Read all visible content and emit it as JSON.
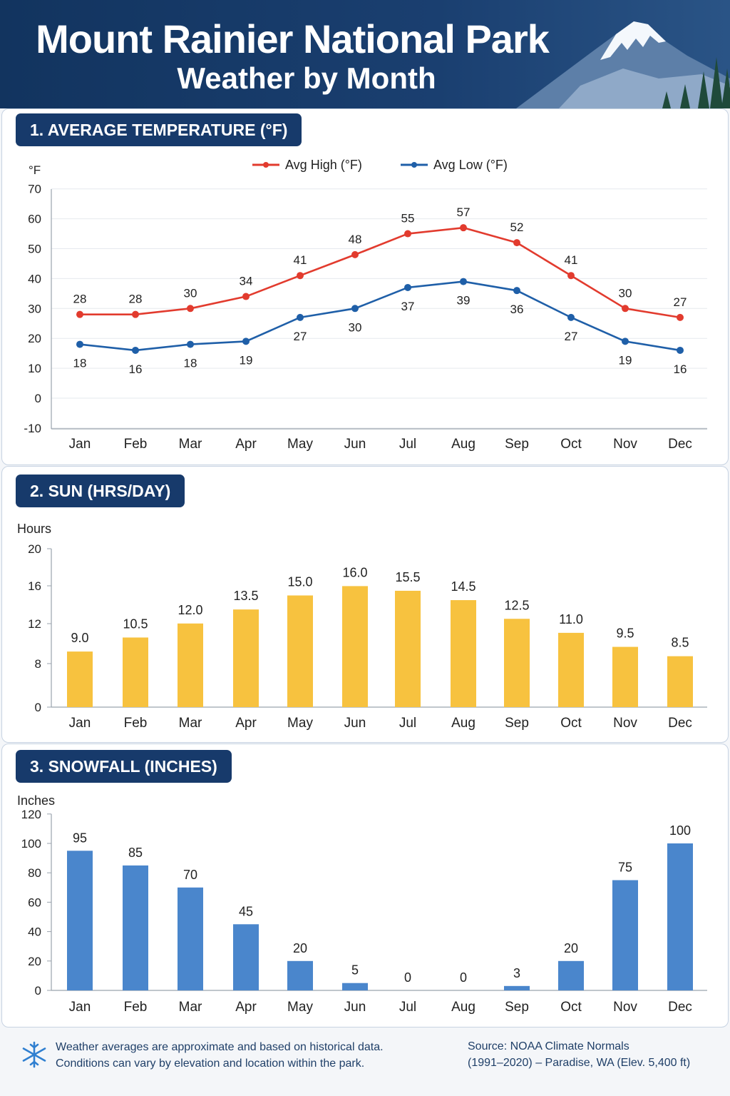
{
  "header": {
    "title": "Mount Rainier National Park",
    "subtitle": "Weather by Month"
  },
  "sections": {
    "temperature": {
      "tag": "1. AVERAGE TEMPERATURE (°F)"
    },
    "sun": {
      "tag": "2. SUN (HRS/DAY)"
    },
    "snow": {
      "tag": "3. SNOWFALL (INCHES)"
    }
  },
  "footer": {
    "note_line1": "Weather averages are approximate and based on historical data.",
    "note_line2": "Conditions can vary by elevation and location within the park.",
    "source_line1": "Source: NOAA Climate Normals",
    "source_line2": "(1991–2020) – Paradise, WA (Elev. 5,400 ft)"
  },
  "chart_data": [
    {
      "type": "line",
      "categories": [
        "Jan",
        "Feb",
        "Mar",
        "Apr",
        "May",
        "Jun",
        "Jul",
        "Aug",
        "Sep",
        "Oct",
        "Nov",
        "Dec"
      ],
      "ylabel": "°F",
      "ylim": [
        -10,
        70
      ],
      "yticks": [
        70,
        60,
        50,
        40,
        30,
        20,
        10,
        0,
        -10
      ],
      "grid": true,
      "legend": "top-center",
      "series": [
        {
          "name": "Avg High (°F)",
          "color": "#e23b2e",
          "values": [
            28,
            28,
            30,
            34,
            41,
            48,
            55,
            57,
            52,
            41,
            30,
            27
          ]
        },
        {
          "name": "Avg Low (°F)",
          "color": "#1f5fa8",
          "values": [
            18,
            16,
            18,
            19,
            27,
            30,
            37,
            39,
            36,
            27,
            19,
            16
          ]
        }
      ]
    },
    {
      "type": "bar",
      "categories": [
        "Jan",
        "Feb",
        "Mar",
        "Apr",
        "May",
        "Jun",
        "Jul",
        "Aug",
        "Sep",
        "Oct",
        "Nov",
        "Dec"
      ],
      "ylabel": "Hours",
      "yticks": [
        "20",
        "16",
        "12",
        "8",
        "0"
      ],
      "color": "#f7c23f",
      "values": [
        9.0,
        10.5,
        12.0,
        13.5,
        15.0,
        16.0,
        15.5,
        14.5,
        12.5,
        11.0,
        9.5,
        8.5
      ],
      "value_labels": [
        "9.0",
        "10.5",
        "12.0",
        "13.5",
        "15.0",
        "16.0",
        "15.5",
        "14.5",
        "12.5",
        "11.0",
        "9.5",
        "8.5"
      ]
    },
    {
      "type": "bar",
      "categories": [
        "Jan",
        "Feb",
        "Mar",
        "Apr",
        "May",
        "Jun",
        "Jul",
        "Aug",
        "Sep",
        "Oct",
        "Nov",
        "Dec"
      ],
      "ylabel": "Inches",
      "ylim": [
        0,
        120
      ],
      "yticks": [
        120,
        100,
        80,
        60,
        40,
        20,
        0
      ],
      "color": "#4a86cc",
      "values": [
        95,
        85,
        70,
        45,
        20,
        5,
        0,
        0,
        3,
        20,
        75,
        100
      ]
    }
  ]
}
